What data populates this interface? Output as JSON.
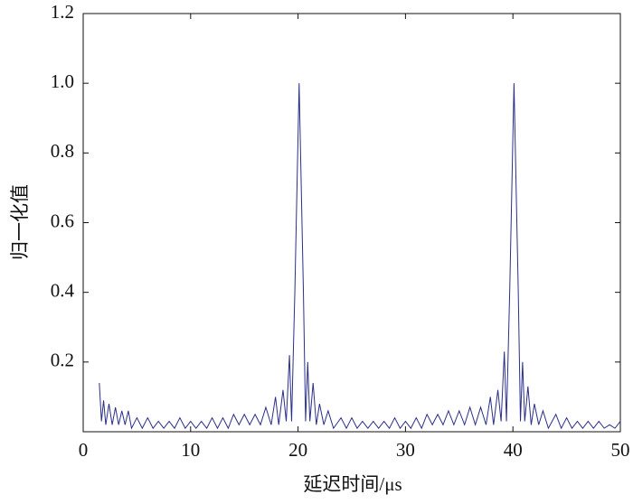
{
  "chart_data": {
    "type": "line",
    "x_label": "延迟时间/μs",
    "y_label": "归一化值",
    "xlim": [
      0,
      50
    ],
    "xticks": [
      0,
      10,
      20,
      30,
      40,
      50
    ],
    "ylim": [
      0,
      1.2
    ],
    "yticks": [
      0.2,
      0.4,
      0.6,
      0.8,
      {
        "value": 1,
        "label": "1.0"
      },
      1.2
    ],
    "series": [
      {
        "color": "#2b2f8a",
        "x": [
          1.5,
          1.7,
          1.9,
          2.1,
          2.4,
          2.7,
          3.0,
          3.3,
          3.6,
          3.9,
          4.2,
          4.5,
          5,
          5.5,
          6,
          6.5,
          7,
          7.5,
          8,
          8.5,
          9,
          9.5,
          10,
          10.5,
          11,
          11.5,
          12,
          12.5,
          13,
          13.5,
          14,
          14.5,
          15,
          15.5,
          16,
          16.5,
          17,
          17.5,
          17.9,
          18.2,
          18.6,
          18.9,
          19.2,
          19.4,
          19.7,
          20.1,
          20.5,
          20.7,
          20.9,
          21.1,
          21.4,
          21.7,
          22,
          22.4,
          22.8,
          23.3,
          24,
          24.5,
          25,
          25.5,
          26,
          26.5,
          27,
          27.5,
          28,
          28.5,
          29,
          29.5,
          30,
          30.5,
          31,
          31.5,
          32,
          32.5,
          33,
          33.5,
          34,
          34.5,
          35,
          35.5,
          36,
          36.5,
          37,
          37.5,
          37.9,
          38.2,
          38.6,
          38.9,
          39.2,
          39.4,
          39.7,
          40.1,
          40.5,
          40.7,
          40.9,
          41.1,
          41.4,
          41.7,
          42,
          42.4,
          42.8,
          43.3,
          44,
          44.5,
          45,
          45.5,
          46,
          46.5,
          47,
          47.5,
          48,
          48.5,
          49,
          49.5,
          50
        ],
        "values": [
          0.14,
          0.03,
          0.09,
          0.02,
          0.08,
          0.02,
          0.07,
          0.02,
          0.06,
          0.02,
          0.06,
          0.01,
          0.04,
          0.01,
          0.04,
          0.01,
          0.03,
          0.01,
          0.03,
          0.01,
          0.04,
          0.01,
          0.03,
          0.01,
          0.03,
          0.01,
          0.04,
          0.01,
          0.04,
          0.01,
          0.05,
          0.02,
          0.05,
          0.02,
          0.05,
          0.02,
          0.07,
          0.02,
          0.1,
          0.02,
          0.12,
          0.03,
          0.22,
          0.03,
          0.4,
          1.0,
          0.4,
          0.03,
          0.2,
          0.03,
          0.14,
          0.02,
          0.08,
          0.02,
          0.06,
          0.01,
          0.04,
          0.01,
          0.04,
          0.01,
          0.03,
          0.01,
          0.03,
          0.01,
          0.03,
          0.01,
          0.04,
          0.01,
          0.03,
          0.01,
          0.04,
          0.01,
          0.05,
          0.02,
          0.05,
          0.02,
          0.06,
          0.02,
          0.06,
          0.02,
          0.07,
          0.02,
          0.07,
          0.02,
          0.1,
          0.02,
          0.12,
          0.03,
          0.23,
          0.03,
          0.4,
          1.0,
          0.4,
          0.03,
          0.2,
          0.03,
          0.13,
          0.02,
          0.08,
          0.02,
          0.06,
          0.01,
          0.05,
          0.01,
          0.04,
          0.01,
          0.03,
          0.01,
          0.03,
          0.01,
          0.03,
          0.01,
          0.02,
          0.01,
          0.03
        ]
      }
    ]
  }
}
